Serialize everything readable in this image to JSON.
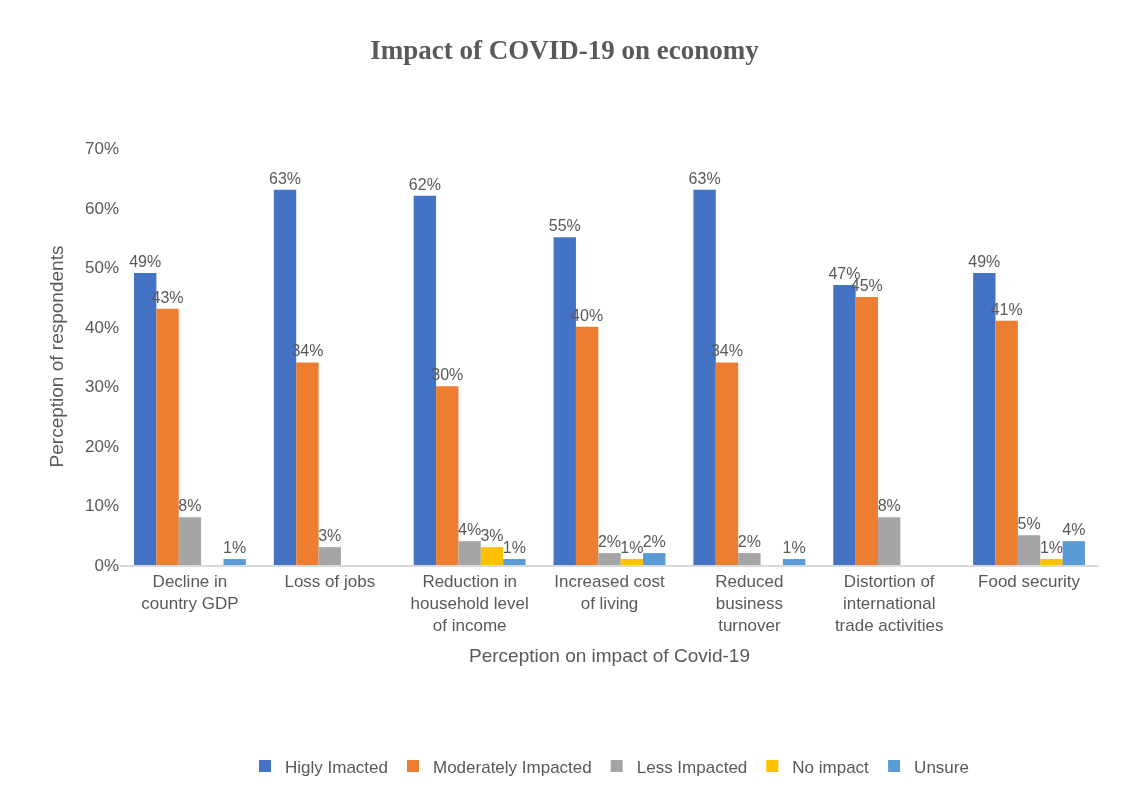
{
  "chart_data": {
    "type": "bar",
    "title": "Impact of COVID-19 on economy",
    "xlabel": "Perception on impact of Covid-19",
    "ylabel": "Perception of respondents",
    "categories": [
      "Decline in country GDP",
      "Loss of jobs",
      "Reduction in household level of income",
      "Increased cost of living",
      "Reduced business turnover",
      "Distortion of international trade activities",
      "Food security"
    ],
    "series": [
      {
        "name": "Higly Imacted",
        "color": "#4472c4",
        "values": [
          49,
          63,
          62,
          55,
          63,
          47,
          49
        ],
        "value_labels": [
          "49%",
          "63%",
          "62%",
          "55%",
          "63%",
          "47%",
          "49%"
        ]
      },
      {
        "name": "Moderately Impacted",
        "color": "#ed7d31",
        "values": [
          43,
          34,
          30,
          40,
          34,
          45,
          41
        ],
        "value_labels": [
          "43%",
          "34%",
          "30%",
          "40%",
          "34%",
          "45%",
          "41%"
        ]
      },
      {
        "name": "Less Impacted",
        "color": "#a5a5a5",
        "values": [
          8,
          3,
          4,
          2,
          2,
          8,
          5
        ],
        "value_labels": [
          "8%",
          "3%",
          "4%",
          "2%",
          "2%",
          "8%",
          "5%"
        ]
      },
      {
        "name": "No impact",
        "color": "#ffc000",
        "values": [
          0,
          0,
          3,
          1,
          0,
          0,
          1
        ],
        "value_labels": [
          null,
          null,
          "3%",
          "1%",
          null,
          null,
          "1%"
        ]
      },
      {
        "name": "Unsure",
        "color": "#5b9bd5",
        "values": [
          1,
          0,
          1,
          2,
          1,
          0,
          4
        ],
        "value_labels": [
          "1%",
          null,
          "1%",
          "2%",
          "1%",
          null,
          "4%"
        ]
      }
    ],
    "ylim": [
      0,
      70
    ],
    "yticks": [
      {
        "value": 0,
        "label": "0%"
      },
      {
        "value": 10,
        "label": "10%"
      },
      {
        "value": 20,
        "label": "20%"
      },
      {
        "value": 30,
        "label": "30%"
      },
      {
        "value": 40,
        "label": "40%"
      },
      {
        "value": 50,
        "label": "50%"
      },
      {
        "value": 60,
        "label": "60%"
      },
      {
        "value": 70,
        "label": "70%"
      }
    ],
    "grid": false,
    "legend": "bottom"
  }
}
